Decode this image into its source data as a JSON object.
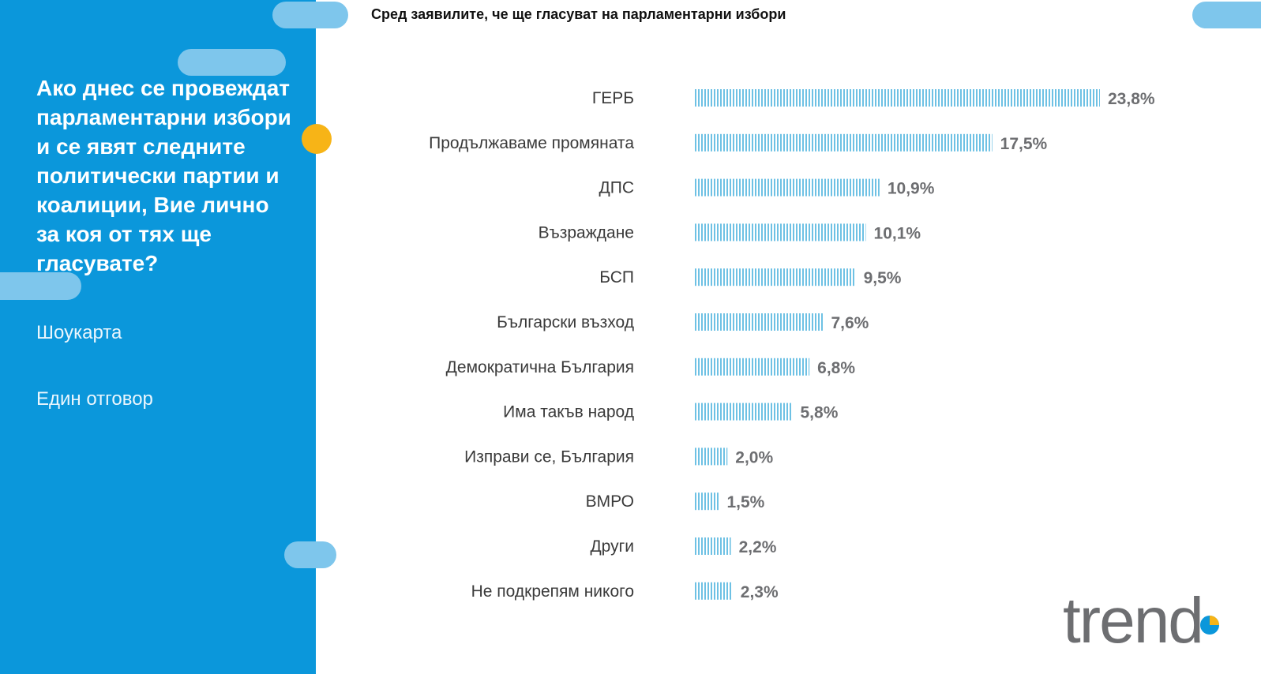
{
  "sidebar": {
    "question": "Ако днес се провеждат парламентарни избори и се явят следните политически партии и коалиции, Вие лично за коя от тях ще гласувате?",
    "note_1": "Шоукарта",
    "note_2": "Един отговор"
  },
  "header": {
    "title": "Сред заявилите, че ще гласуват на парламентарни избори"
  },
  "logo": {
    "text": "trend"
  },
  "colors": {
    "sidebar": "#0b97db",
    "pill": "#7ec6ec",
    "accent_dot": "#f7b417",
    "bar": "#6ec1e4",
    "value_text": "#6d6e71",
    "label_text": "#3a3a3a",
    "logo": "#6d6e71"
  },
  "chart_data": {
    "type": "bar",
    "orientation": "horizontal",
    "title": "Сред заявилите, че ще гласуват на парламентарни избори",
    "categories": [
      "ГЕРБ",
      "Продължаваме промяната",
      "ДПС",
      "Възраждане",
      "БСП",
      "Български възход",
      "Демократична България",
      "Има такъв народ",
      "Изправи се, България",
      "ВМРО",
      "Други",
      "Не подкрепям никого"
    ],
    "values": [
      23.8,
      17.5,
      10.9,
      10.1,
      9.5,
      7.6,
      6.8,
      5.8,
      2.0,
      1.5,
      2.2,
      2.3
    ],
    "value_labels": [
      "23,8%",
      "17,5%",
      "10,9%",
      "10,1%",
      "9,5%",
      "7,6%",
      "6,8%",
      "5,8%",
      "2,0%",
      "1,5%",
      "2,2%",
      "2,3%"
    ],
    "xlim": [
      0,
      23.8
    ],
    "grid": false,
    "legend": "none"
  }
}
